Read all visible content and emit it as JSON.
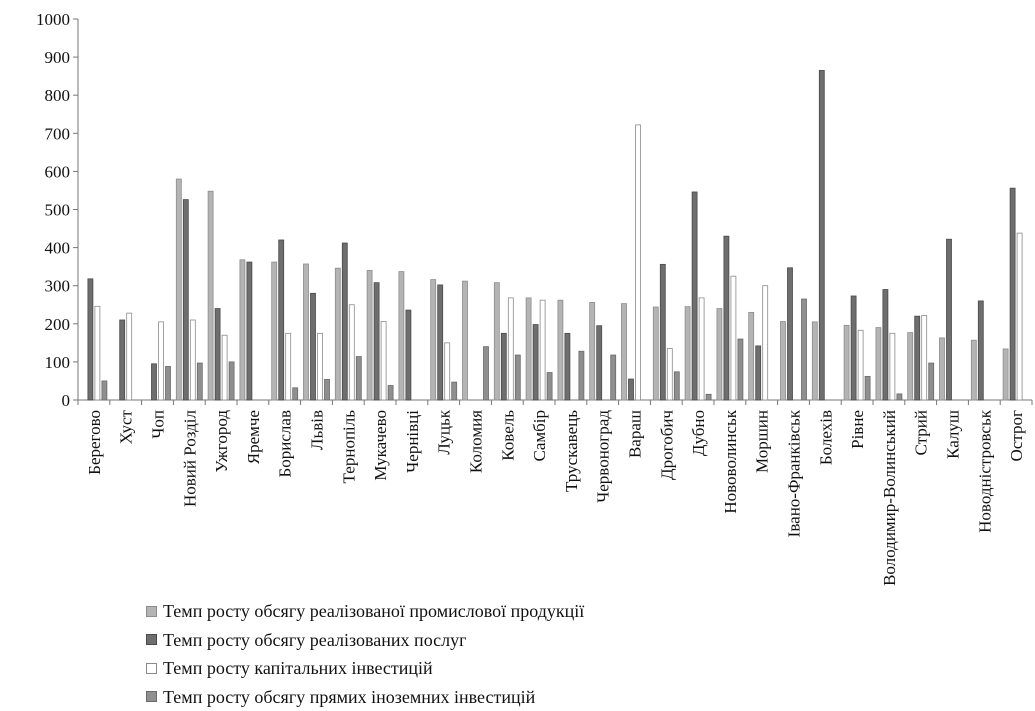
{
  "chart_data": {
    "type": "bar",
    "ylim": [
      0,
      1000
    ],
    "yticks": [
      0,
      100,
      200,
      300,
      400,
      500,
      600,
      700,
      800,
      900,
      1000
    ],
    "grid": false,
    "legend_position": "bottom",
    "categories": [
      "Берегово",
      "Хуст",
      "Чоп",
      "Новий Розділ",
      "Ужгород",
      "Яремче",
      "Борислав",
      "Львів",
      "Тернопіль",
      "Мукачево",
      "Чернівці",
      "Луцьк",
      "Коломия",
      "Ковель",
      "Самбір",
      "Трускавець",
      "Червоноград",
      "Вараш",
      "Дрогобич",
      "Дубно",
      "Нововолинськ",
      "Моршин",
      "Івано-Франківськ",
      "Болехів",
      "Рівне",
      "Володимир-Волинський",
      "Стрий",
      "Калуш",
      "Новодністровськ",
      "Острог"
    ],
    "series": [
      {
        "name": "Темп росту обсягу реалізованої промислової продукції",
        "color": "#b4b4b4",
        "border": "#8c8c8c",
        "values": [
          0,
          0,
          0,
          580,
          548,
          368,
          362,
          357,
          346,
          340,
          337,
          316,
          312,
          308,
          268,
          262,
          256,
          253,
          244,
          245,
          240,
          230,
          206,
          205,
          196,
          190,
          177,
          163,
          157,
          134
        ]
      },
      {
        "name": "Темп росту обсягу реалізованих послуг",
        "color": "#6e6e6e",
        "border": "#4a4a4a",
        "values": [
          318,
          210,
          95,
          526,
          240,
          362,
          420,
          280,
          412,
          308,
          236,
          302,
          0,
          175,
          198,
          175,
          195,
          55,
          356,
          546,
          430,
          142,
          347,
          865,
          273,
          290,
          220,
          422,
          260,
          556
        ]
      },
      {
        "name": "Темп росту капітальних інвестицій",
        "color": "#ffffff",
        "border": "#8a8a8a",
        "values": [
          246,
          228,
          205,
          210,
          170,
          0,
          175,
          175,
          250,
          206,
          0,
          150,
          0,
          268,
          262,
          0,
          0,
          722,
          135,
          268,
          325,
          300,
          0,
          0,
          183,
          175,
          222,
          0,
          0,
          438
        ]
      },
      {
        "name": "Темп росту обсягу прямих іноземних інвестицій",
        "color": "#8f8f8f",
        "border": "#6a6a6a",
        "values": [
          50,
          0,
          88,
          97,
          100,
          0,
          32,
          54,
          114,
          38,
          0,
          47,
          140,
          118,
          72,
          128,
          118,
          0,
          74,
          15,
          160,
          0,
          265,
          0,
          62,
          16,
          97,
          0,
          0,
          0
        ]
      }
    ]
  }
}
